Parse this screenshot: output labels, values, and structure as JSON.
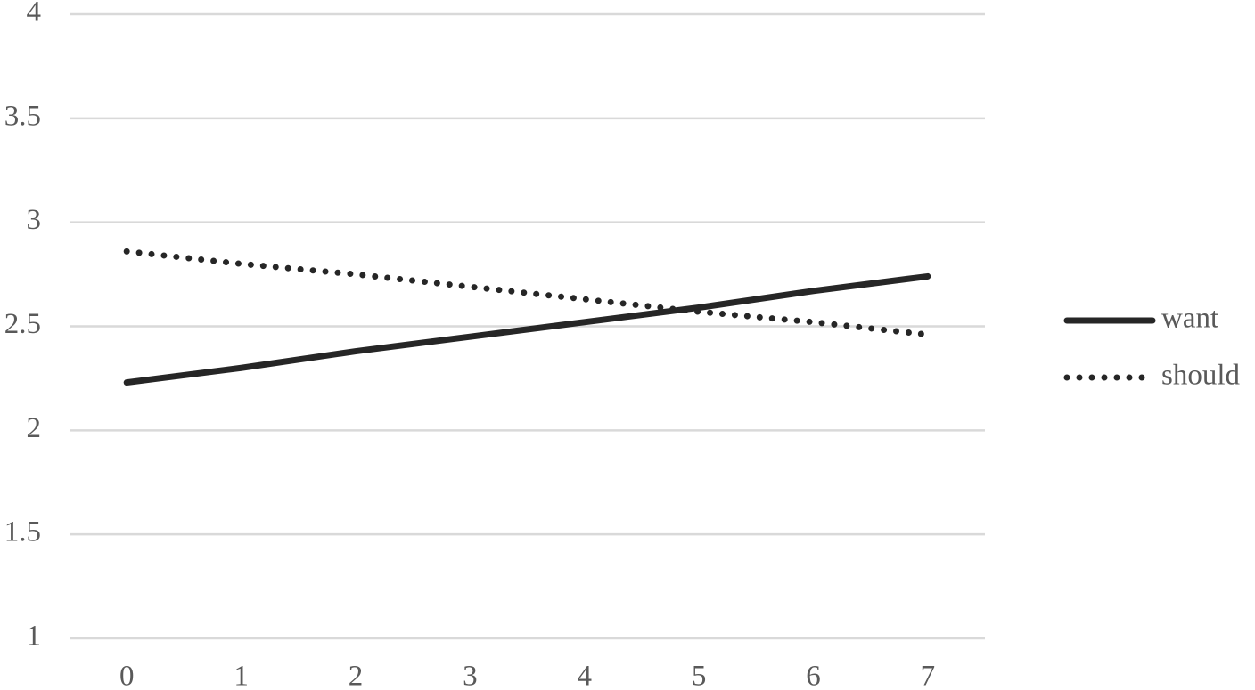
{
  "chart_data": {
    "type": "line",
    "x": [
      0,
      1,
      2,
      3,
      4,
      5,
      6,
      7
    ],
    "xlim": [
      -0.5,
      7.5
    ],
    "xticks": [
      0,
      1,
      2,
      3,
      4,
      5,
      6,
      7
    ],
    "ylim": [
      1,
      4
    ],
    "yticks": [
      1,
      1.5,
      2,
      2.5,
      3,
      3.5,
      4
    ],
    "grid": true,
    "legend": "right",
    "series": [
      {
        "name": "want",
        "color": "#262626",
        "style": "solid",
        "values": [
          2.23,
          2.3,
          2.38,
          2.45,
          2.52,
          2.59,
          2.67,
          2.74
        ]
      },
      {
        "name": "should",
        "color": "#262626",
        "style": "dotted",
        "values": [
          2.86,
          2.8,
          2.75,
          2.69,
          2.63,
          2.57,
          2.52,
          2.46
        ]
      }
    ]
  }
}
